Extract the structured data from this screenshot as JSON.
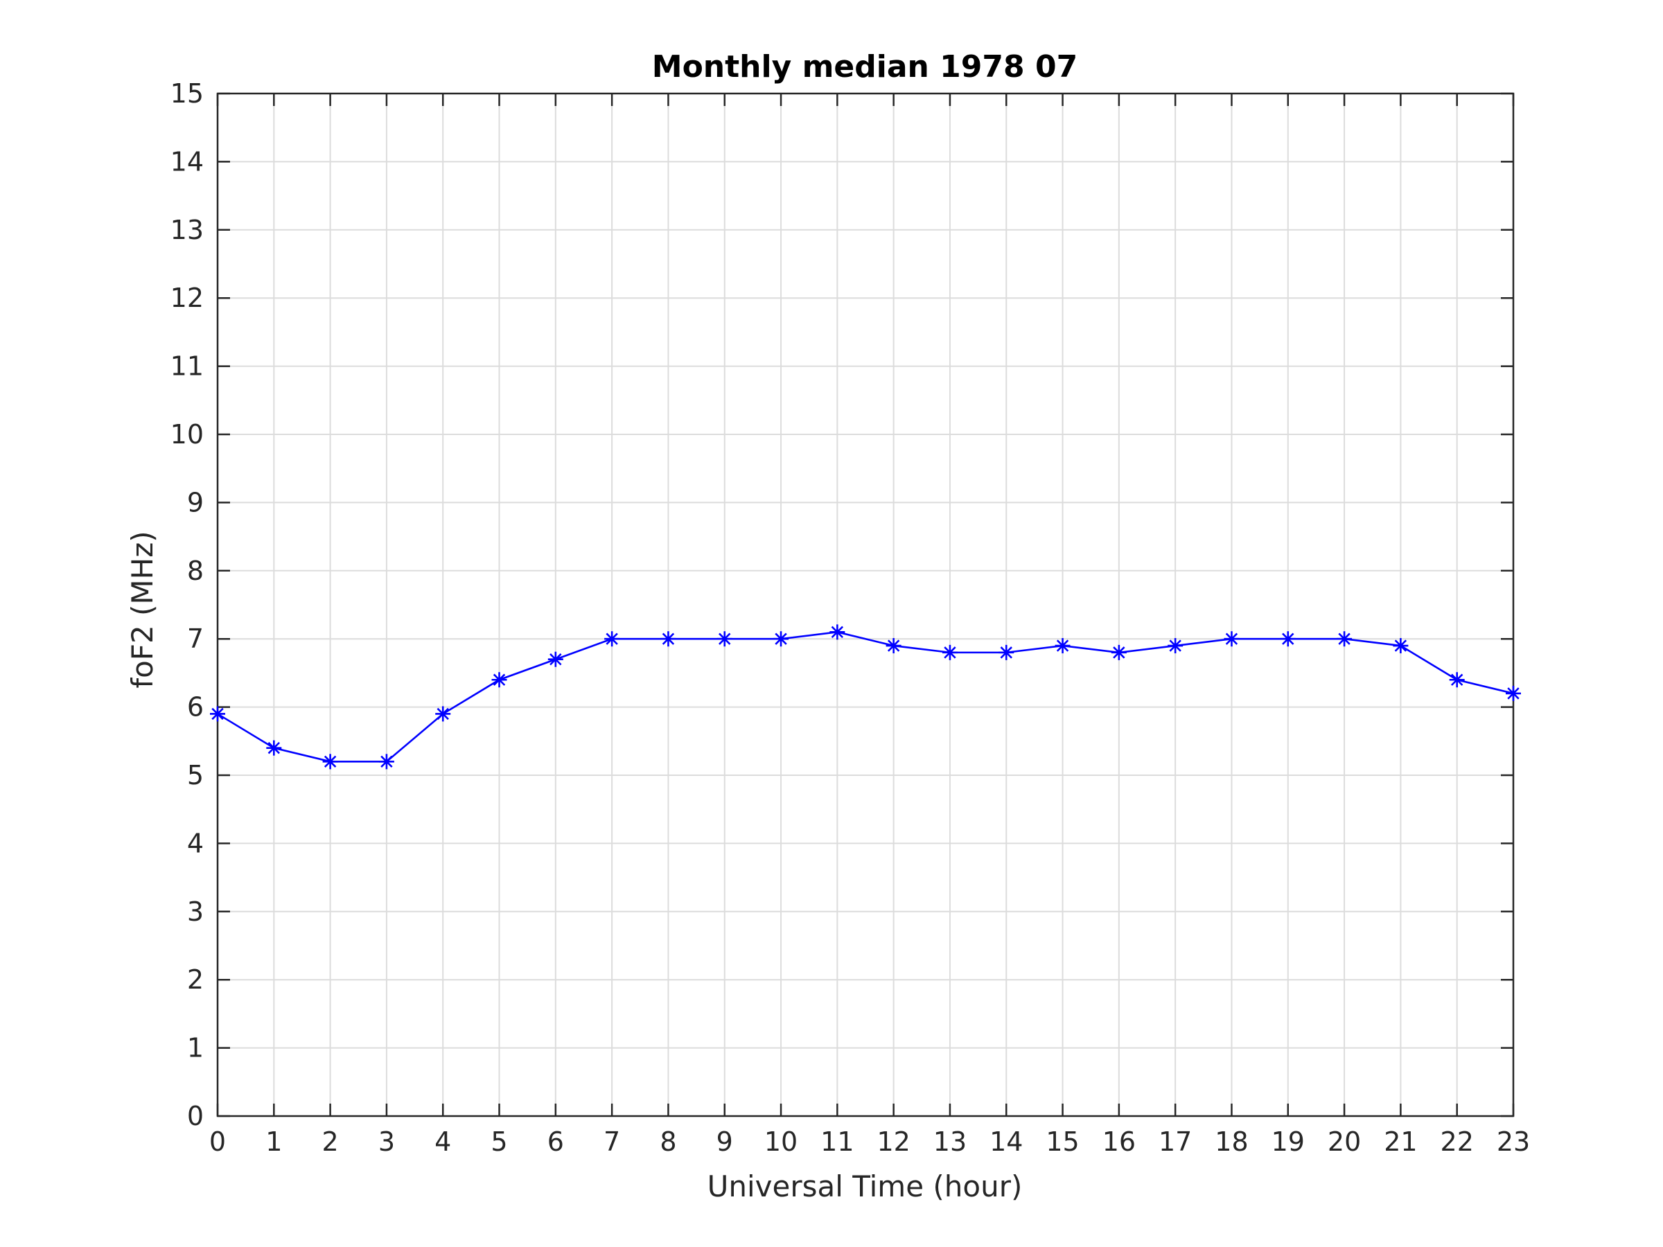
{
  "chart_data": {
    "type": "line",
    "title": "Monthly median 1978 07",
    "xlabel": "Universal Time (hour)",
    "ylabel": "foF2 (MHz)",
    "xlim": [
      0,
      23
    ],
    "ylim": [
      0,
      15
    ],
    "xticks": [
      0,
      1,
      2,
      3,
      4,
      5,
      6,
      7,
      8,
      9,
      10,
      11,
      12,
      13,
      14,
      15,
      16,
      17,
      18,
      19,
      20,
      21,
      22,
      23
    ],
    "yticks": [
      0,
      1,
      2,
      3,
      4,
      5,
      6,
      7,
      8,
      9,
      10,
      11,
      12,
      13,
      14,
      15
    ],
    "grid": true,
    "series": [
      {
        "color": "#0000ff",
        "marker": "asterisk",
        "x": [
          0,
          1,
          2,
          3,
          4,
          5,
          6,
          7,
          8,
          9,
          10,
          11,
          12,
          13,
          14,
          15,
          16,
          17,
          18,
          19,
          20,
          21,
          22,
          23
        ],
        "y": [
          5.9,
          5.4,
          5.2,
          5.2,
          5.9,
          6.4,
          6.7,
          7.0,
          7.0,
          7.0,
          7.0,
          7.1,
          6.9,
          6.8,
          6.8,
          6.9,
          6.8,
          6.9,
          7.0,
          7.0,
          7.0,
          6.9,
          6.4,
          6.2
        ]
      }
    ]
  }
}
